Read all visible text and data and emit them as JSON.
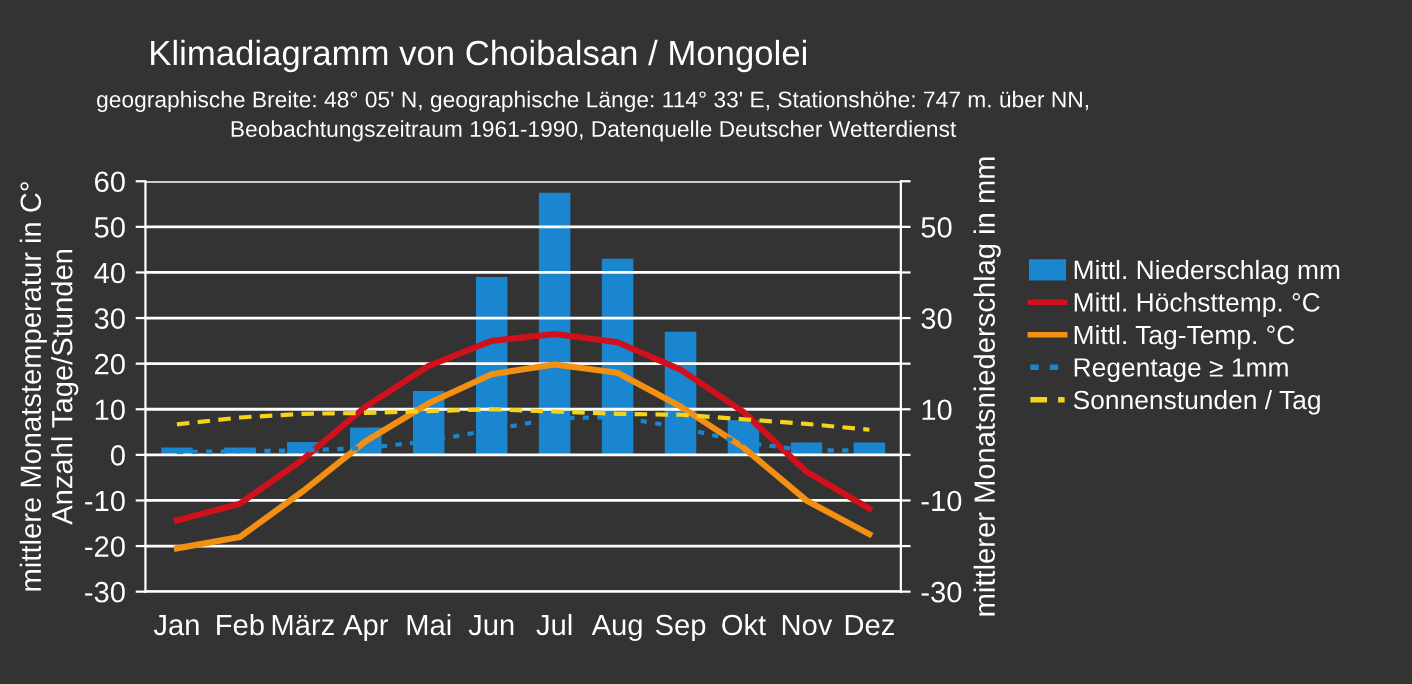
{
  "chart_data": {
    "type": "bar",
    "title": "Klimadiagramm von Choibalsan / Mongolei",
    "subtitle": "geographische Breite: 48° 05' N, geographische Länge: 114° 33' E, Stationshöhe: 747 m. über NN,\nBeobachtungszeitraum 1961-1990, Datenquelle Deutscher Wetterdienst",
    "ylabel": "mittlere Monatstemperatur in C°\nAnzahl Tage/Stunden",
    "y2label": "mittlerer Monatsniederschlag in mm",
    "categories": [
      "Jan",
      "Feb",
      "März",
      "Apr",
      "Mai",
      "Jun",
      "Jul",
      "Aug",
      "Sep",
      "Okt",
      "Nov",
      "Dez"
    ],
    "series": [
      {
        "name": "Mittl. Niederschlag mm",
        "axis": "y2",
        "color": "#1a86d0",
        "values": [
          1.6,
          1.6,
          2.8,
          6,
          14,
          39,
          57.5,
          43,
          27,
          7.6,
          2.7,
          2.7
        ]
      },
      {
        "name": "Mittl. Höchsttemp. °C",
        "type": "line",
        "color": "#d0101a",
        "line_style": "solid",
        "values": [
          -14.4,
          -10.7,
          -1,
          10.6,
          19.5,
          25,
          26.5,
          24.7,
          18.7,
          9.4,
          -3.7,
          -11.8
        ]
      },
      {
        "name": "Mittl. Tag-Temp. °C",
        "type": "line",
        "color": "#f39012",
        "line_style": "solid",
        "values": [
          -20.5,
          -18,
          -8,
          3,
          11.3,
          17.7,
          19.8,
          18,
          10.6,
          1.6,
          -10,
          -17.4
        ]
      },
      {
        "name": "Regentage ≥ 1mm",
        "type": "line",
        "color": "#1a86d0",
        "line_style": "dotted",
        "values": [
          0.6,
          0.8,
          1,
          1.5,
          3,
          5.5,
          8,
          8.3,
          6,
          2.7,
          1,
          1
        ]
      },
      {
        "name": "Sonnenstunden / Tag",
        "type": "line",
        "color": "#f5d31a",
        "line_style": "dashed",
        "values": [
          6.7,
          8.2,
          9,
          9.2,
          9.6,
          10,
          9.5,
          9,
          8.8,
          7.8,
          6.8,
          5.5
        ]
      }
    ],
    "ylim": [
      -30,
      60
    ],
    "yticks": [
      -30,
      -20,
      -10,
      0,
      10,
      20,
      30,
      40,
      50,
      60
    ],
    "y2lim": [
      -30,
      60
    ],
    "y2ticks": [
      {
        "value": -30,
        "label": "-30"
      },
      {
        "value": -20,
        "label": null
      },
      {
        "value": -10,
        "label": "-10"
      },
      {
        "value": 0,
        "label": null
      },
      {
        "value": 10,
        "label": "10"
      },
      {
        "value": 20,
        "label": null
      },
      {
        "value": 30,
        "label": "30"
      },
      {
        "value": 40,
        "label": null
      },
      {
        "value": 50,
        "label": "50"
      },
      {
        "value": 60,
        "label": null
      }
    ],
    "grid": "y",
    "legend": "right"
  }
}
